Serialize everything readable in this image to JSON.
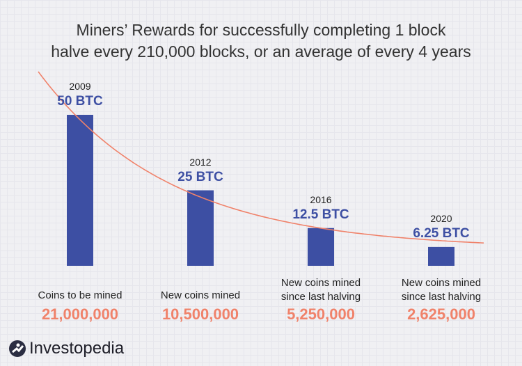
{
  "chart_data": {
    "type": "bar",
    "title": "Miners’ Rewards for successfully completing 1 block halve every 210,000 blocks, or an average of every 4 years",
    "title_lines": [
      "Miners’ Rewards for successfully completing 1 block",
      "halve every 210,000 blocks, or an average of every 4 years"
    ],
    "categories": [
      "2009",
      "2012",
      "2016",
      "2020"
    ],
    "values": [
      50,
      25,
      12.5,
      6.25
    ],
    "value_labels": [
      "50 BTC",
      "25 BTC",
      "12.5 BTC",
      "6.25 BTC"
    ],
    "captions": [
      [
        "Coins to be mined"
      ],
      [
        "New coins mined"
      ],
      [
        "New coins mined",
        "since last halving"
      ],
      [
        "New coins mined",
        "since last halving"
      ]
    ],
    "coin_counts": [
      "21,000,000",
      "10,500,000",
      "5,250,000",
      "2,625,000"
    ],
    "trend_line": "exponential decay",
    "grid": false,
    "colors": {
      "bar": "#3d4fa3",
      "trend": "#f0826a",
      "coins": "#f0826a"
    }
  },
  "brand": {
    "name": "Investopedia"
  }
}
